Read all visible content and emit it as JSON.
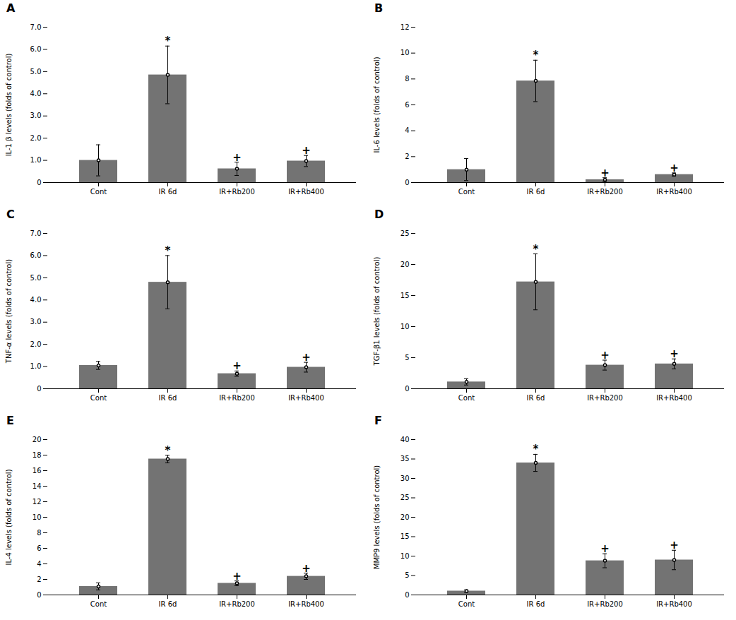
{
  "chart_data": [
    {
      "type": "bar",
      "title": "A",
      "ylabel": "IL-1 β levels (folds of control)",
      "categories": [
        "Cont",
        "IR 6d",
        "IR+Rb200",
        "IR+Rb400"
      ],
      "values": [
        1.0,
        4.85,
        0.62,
        0.97
      ],
      "errors": [
        0.7,
        1.3,
        0.3,
        0.25
      ],
      "color": "#737373",
      "ylim": [
        0,
        7.0
      ],
      "yticks": [
        0,
        {
          "value": 1.0,
          "label": "1.0"
        },
        {
          "value": 2.0,
          "label": "2.0"
        },
        {
          "value": 3.0,
          "label": "3.0"
        },
        {
          "value": 4.0,
          "label": "4.0"
        },
        {
          "value": 5.0,
          "label": "5.0"
        },
        {
          "value": 6.0,
          "label": "6.0"
        },
        {
          "value": 7.0,
          "label": "7.0"
        }
      ],
      "annotations": [
        {
          "category": "IR 6d",
          "text": "*"
        },
        {
          "category": "IR+Rb200",
          "text": "+"
        },
        {
          "category": "IR+Rb400",
          "text": "+"
        }
      ]
    },
    {
      "type": "bar",
      "title": "B",
      "ylabel": "IL-6 levels (folds of control)",
      "categories": [
        "Cont",
        "IR 6d",
        "IR+Rb200",
        "IR+Rb400"
      ],
      "values": [
        1.0,
        7.85,
        0.22,
        0.62
      ],
      "errors": [
        0.85,
        1.6,
        0.15,
        0.12
      ],
      "color": "#737373",
      "ylim": [
        0,
        12
      ],
      "yticks": [
        0,
        2,
        4,
        6,
        8,
        10,
        12
      ],
      "annotations": [
        {
          "category": "IR 6d",
          "text": "*"
        },
        {
          "category": "IR+Rb200",
          "text": "+"
        },
        {
          "category": "IR+Rb400",
          "text": "+"
        }
      ]
    },
    {
      "type": "bar",
      "title": "C",
      "ylabel": "TNF-α levels (folds of control)",
      "categories": [
        "Cont",
        "IR 6d",
        "IR+Rb200",
        "IR+Rb400"
      ],
      "values": [
        1.05,
        4.8,
        0.68,
        0.97
      ],
      "errors": [
        0.18,
        1.2,
        0.12,
        0.22
      ],
      "color": "#737373",
      "ylim": [
        0,
        7.0
      ],
      "yticks": [
        0,
        {
          "value": 1.0,
          "label": "1.0"
        },
        {
          "value": 2.0,
          "label": "2.0"
        },
        {
          "value": 3.0,
          "label": "3.0"
        },
        {
          "value": 4.0,
          "label": "4.0"
        },
        {
          "value": 5.0,
          "label": "5.0"
        },
        {
          "value": 6.0,
          "label": "6.0"
        },
        {
          "value": 7.0,
          "label": "7.0"
        }
      ],
      "annotations": [
        {
          "category": "IR 6d",
          "text": "*"
        },
        {
          "category": "IR+Rb200",
          "text": "+"
        },
        {
          "category": "IR+Rb400",
          "text": "+"
        }
      ]
    },
    {
      "type": "bar",
      "title": "D",
      "ylabel": "TGF-β1 levels (folds of control)",
      "categories": [
        "Cont",
        "IR 6d",
        "IR+Rb200",
        "IR+Rb400"
      ],
      "values": [
        1.1,
        17.2,
        3.8,
        4.0
      ],
      "errors": [
        0.5,
        4.5,
        0.8,
        0.8
      ],
      "color": "#737373",
      "ylim": [
        0,
        25
      ],
      "yticks": [
        0,
        5,
        10,
        15,
        20,
        25
      ],
      "annotations": [
        {
          "category": "IR 6d",
          "text": "*"
        },
        {
          "category": "IR+Rb200",
          "text": "+"
        },
        {
          "category": "IR+Rb400",
          "text": "+"
        }
      ]
    },
    {
      "type": "bar",
      "title": "E",
      "ylabel": "IL-4 levels (folds of control)",
      "categories": [
        "Cont",
        "IR 6d",
        "IR+Rb200",
        "IR+Rb400"
      ],
      "values": [
        1.1,
        17.5,
        1.5,
        2.4
      ],
      "errors": [
        0.45,
        0.5,
        0.3,
        0.4
      ],
      "color": "#737373",
      "ylim": [
        0,
        20
      ],
      "yticks": [
        0,
        2,
        4,
        6,
        8,
        10,
        12,
        14,
        16,
        18,
        20
      ],
      "annotations": [
        {
          "category": "IR 6d",
          "text": "*"
        },
        {
          "category": "IR+Rb200",
          "text": "+"
        },
        {
          "category": "IR+Rb400",
          "text": "+"
        }
      ]
    },
    {
      "type": "bar",
      "title": "F",
      "ylabel": "MMP9 levels (folds of control)",
      "categories": [
        "Cont",
        "IR 6d",
        "IR+Rb200",
        "IR+Rb400"
      ],
      "values": [
        1.0,
        34.0,
        8.8,
        9.0
      ],
      "errors": [
        0.3,
        2.2,
        1.8,
        2.5
      ],
      "color": "#737373",
      "ylim": [
        0,
        40
      ],
      "yticks": [
        0,
        5,
        10,
        15,
        20,
        25,
        30,
        35,
        40
      ],
      "annotations": [
        {
          "category": "IR 6d",
          "text": "*"
        },
        {
          "category": "IR+Rb200",
          "text": "+"
        },
        {
          "category": "IR+Rb400",
          "text": "+"
        }
      ]
    }
  ]
}
